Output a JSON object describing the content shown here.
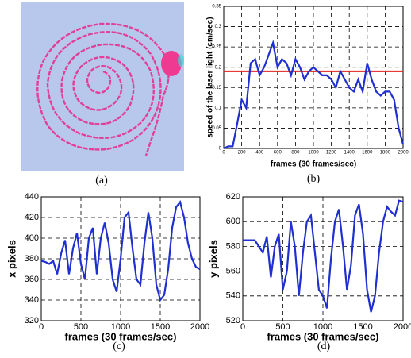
{
  "captions": [
    "(a)",
    "(b)",
    "(c)",
    "(d)"
  ],
  "chart_data": [
    {
      "type": "line",
      "xlabel": "frames (30 frames/sec)",
      "ylabel": "speed of the laser light (cm/sec)",
      "color": "#1f2fd0",
      "grid": true,
      "x": [
        0,
        50,
        100,
        150,
        200,
        250,
        300,
        350,
        400,
        450,
        500,
        550,
        600,
        650,
        700,
        750,
        800,
        850,
        900,
        950,
        1000,
        1050,
        1100,
        1150,
        1200,
        1250,
        1300,
        1350,
        1400,
        1450,
        1500,
        1550,
        1600,
        1650,
        1700,
        1750,
        1800,
        1850,
        1900,
        1950,
        2000
      ],
      "values": [
        0,
        0.005,
        0.005,
        0.06,
        0.12,
        0.1,
        0.21,
        0.22,
        0.18,
        0.2,
        0.23,
        0.26,
        0.2,
        0.22,
        0.21,
        0.18,
        0.22,
        0.2,
        0.17,
        0.19,
        0.2,
        0.19,
        0.18,
        0.18,
        0.17,
        0.15,
        0.19,
        0.17,
        0.15,
        0.14,
        0.17,
        0.14,
        0.21,
        0.17,
        0.14,
        0.13,
        0.14,
        0.14,
        0.12,
        0.05,
        0.01
      ],
      "hline": {
        "value": 0.19,
        "color": "#e0201c"
      },
      "xlim": [
        0,
        2000
      ],
      "xticks": [
        0,
        200,
        400,
        600,
        800,
        1000,
        1200,
        1400,
        1600,
        1800,
        2000
      ],
      "ylim": [
        0,
        0.35
      ],
      "yticks": [
        0,
        0.05,
        0.1,
        0.15,
        0.2,
        0.25,
        0.3,
        0.35
      ]
    },
    {
      "type": "line",
      "xlabel": "frames (30 frames/sec)",
      "ylabel": "x pixels",
      "color": "#1f2fd0",
      "grid": true,
      "x": [
        0,
        50,
        100,
        150,
        200,
        250,
        300,
        350,
        400,
        450,
        500,
        550,
        600,
        650,
        700,
        750,
        800,
        850,
        900,
        950,
        1000,
        1050,
        1100,
        1150,
        1200,
        1250,
        1300,
        1350,
        1400,
        1450,
        1500,
        1550,
        1600,
        1650,
        1700,
        1750,
        1800,
        1850,
        1900,
        1950,
        2000
      ],
      "values": [
        378,
        377,
        375,
        378,
        365,
        385,
        398,
        365,
        390,
        405,
        375,
        360,
        400,
        410,
        365,
        400,
        415,
        395,
        360,
        348,
        380,
        420,
        425,
        390,
        360,
        355,
        395,
        425,
        400,
        355,
        340,
        345,
        370,
        410,
        430,
        435,
        420,
        395,
        380,
        372,
        370
      ],
      "xlim": [
        0,
        2000
      ],
      "xticks": [
        0,
        500,
        1000,
        1500,
        2000
      ],
      "ylim": [
        320,
        440
      ],
      "yticks": [
        320,
        340,
        360,
        380,
        400,
        420,
        440
      ]
    },
    {
      "type": "line",
      "xlabel": "frames (30 frames/sec)",
      "ylabel": "y pixels",
      "color": "#1f2fd0",
      "grid": true,
      "x": [
        0,
        50,
        100,
        150,
        200,
        250,
        300,
        350,
        400,
        450,
        500,
        550,
        600,
        650,
        700,
        750,
        800,
        850,
        900,
        950,
        1000,
        1050,
        1100,
        1150,
        1200,
        1250,
        1300,
        1350,
        1400,
        1450,
        1500,
        1550,
        1600,
        1650,
        1700,
        1750,
        1800,
        1850,
        1900,
        1950,
        2000
      ],
      "values": [
        585,
        585,
        585,
        585,
        580,
        575,
        588,
        555,
        580,
        590,
        545,
        560,
        600,
        580,
        540,
        575,
        600,
        605,
        575,
        545,
        540,
        530,
        570,
        600,
        610,
        580,
        545,
        565,
        605,
        614,
        590,
        545,
        527,
        540,
        575,
        600,
        612,
        608,
        605,
        617,
        616
      ],
      "xlim": [
        0,
        2000
      ],
      "xticks": [
        0,
        500,
        1000,
        1500,
        2000
      ],
      "ylim": [
        520,
        620
      ],
      "yticks": [
        520,
        540,
        560,
        580,
        600,
        620
      ]
    }
  ]
}
